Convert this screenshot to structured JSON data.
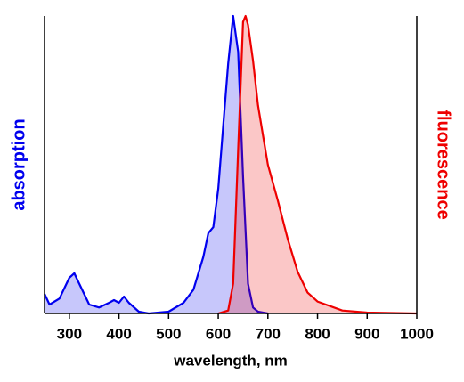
{
  "chart_data": {
    "type": "line",
    "xlabel": "wavelength, nm",
    "xlim": [
      250,
      1000
    ],
    "xticks": [
      300,
      400,
      500,
      600,
      700,
      800,
      900,
      1000
    ],
    "ylim": [
      0,
      1
    ],
    "series": [
      {
        "name": "absorption",
        "color": "#0000ee",
        "x": [
          250,
          260,
          280,
          300,
          310,
          320,
          340,
          360,
          380,
          390,
          400,
          410,
          420,
          440,
          460,
          500,
          530,
          550,
          570,
          580,
          590,
          600,
          610,
          620,
          630,
          640,
          650,
          660,
          670,
          680,
          700
        ],
        "values": [
          0.066,
          0.03,
          0.05,
          0.12,
          0.135,
          0.1,
          0.03,
          0.02,
          0.036,
          0.045,
          0.036,
          0.057,
          0.036,
          0.006,
          0,
          0.006,
          0.036,
          0.08,
          0.19,
          0.27,
          0.29,
          0.42,
          0.63,
          0.84,
          1.0,
          0.88,
          0.46,
          0.1,
          0.02,
          0.006,
          0
        ]
      },
      {
        "name": "fluorescence",
        "color": "#ee0000",
        "x": [
          600,
          620,
          630,
          640,
          650,
          655,
          660,
          670,
          680,
          690,
          700,
          720,
          740,
          760,
          780,
          800,
          850,
          900,
          1000
        ],
        "values": [
          0,
          0.01,
          0.1,
          0.55,
          0.98,
          1.0,
          0.97,
          0.85,
          0.7,
          0.6,
          0.5,
          0.38,
          0.25,
          0.14,
          0.07,
          0.04,
          0.01,
          0.003,
          0
        ]
      }
    ]
  }
}
